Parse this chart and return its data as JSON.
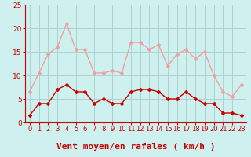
{
  "hours": [
    0,
    1,
    2,
    3,
    4,
    5,
    6,
    7,
    8,
    9,
    10,
    11,
    12,
    13,
    14,
    15,
    16,
    17,
    18,
    19,
    20,
    21,
    22,
    23
  ],
  "mean_wind": [
    1.5,
    4,
    4,
    7,
    8,
    6.5,
    6.5,
    4,
    5,
    4,
    4,
    6.5,
    7,
    7,
    6.5,
    5,
    5,
    6.5,
    5,
    4,
    4,
    2,
    2,
    1.5
  ],
  "gusts": [
    6.5,
    10.5,
    14.5,
    16,
    21,
    15.5,
    15.5,
    10.5,
    10.5,
    11,
    10.5,
    17,
    17,
    15.5,
    16.5,
    12,
    14.5,
    15.5,
    13.5,
    15,
    10,
    6.5,
    5.5,
    8
  ],
  "mean_color": "#cc0000",
  "gust_color": "#f0a0a0",
  "bg_color": "#cef0ee",
  "grid_color": "#aad4d0",
  "axis_color": "#cc0000",
  "ylim": [
    0,
    25
  ],
  "yticks": [
    0,
    5,
    10,
    15,
    20,
    25
  ],
  "xlabel": "Vent moyen/en rafales ( km/h )",
  "xlabel_fontsize": 8,
  "tick_fontsize": 6.5
}
